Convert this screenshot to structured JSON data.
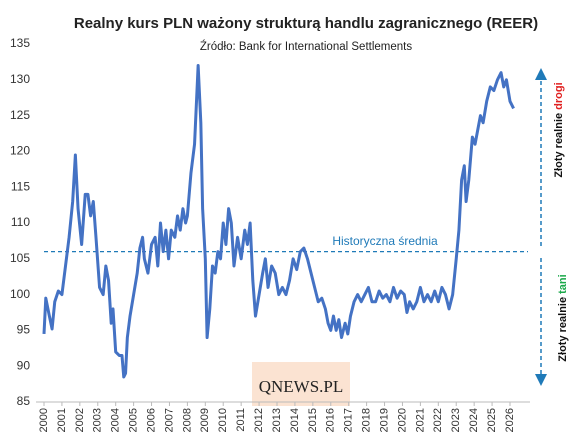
{
  "chart_data": {
    "type": "line",
    "title": "Realny kurs PLN ważony strukturą handlu zagranicznego (REER)",
    "subtitle": "Źródło: Bank for International Settlements",
    "color": "#4472c4",
    "x": [
      2000.0,
      2000.1,
      2000.3,
      2000.45,
      2000.6,
      2000.8,
      2001.0,
      2001.2,
      2001.4,
      2001.6,
      2001.75,
      2001.9,
      2002.1,
      2002.3,
      2002.45,
      2002.6,
      2002.75,
      2002.9,
      2003.1,
      2003.3,
      2003.45,
      2003.6,
      2003.75,
      2003.85,
      2004.0,
      2004.2,
      2004.35,
      2004.45,
      2004.55,
      2004.65,
      2004.8,
      2005.0,
      2005.2,
      2005.35,
      2005.5,
      2005.6,
      2005.8,
      2006.0,
      2006.2,
      2006.35,
      2006.5,
      2006.65,
      2006.8,
      2006.95,
      2007.1,
      2007.3,
      2007.45,
      2007.6,
      2007.75,
      2007.9,
      2008.0,
      2008.2,
      2008.4,
      2008.6,
      2008.75,
      2008.85,
      2009.0,
      2009.1,
      2009.25,
      2009.4,
      2009.55,
      2009.7,
      2009.85,
      2010.0,
      2010.15,
      2010.3,
      2010.45,
      2010.6,
      2010.8,
      2011.0,
      2011.2,
      2011.35,
      2011.5,
      2011.65,
      2011.8,
      2012.0,
      2012.2,
      2012.35,
      2012.5,
      2012.7,
      2012.9,
      2013.1,
      2013.3,
      2013.5,
      2013.7,
      2013.9,
      2014.1,
      2014.3,
      2014.5,
      2014.7,
      2014.9,
      2015.1,
      2015.3,
      2015.5,
      2015.7,
      2015.85,
      2016.0,
      2016.15,
      2016.3,
      2016.45,
      2016.6,
      2016.8,
      2016.95,
      2017.1,
      2017.3,
      2017.5,
      2017.7,
      2017.9,
      2018.1,
      2018.3,
      2018.5,
      2018.7,
      2018.9,
      2019.1,
      2019.3,
      2019.5,
      2019.7,
      2019.9,
      2020.1,
      2020.25,
      2020.4,
      2020.6,
      2020.8,
      2021.0,
      2021.2,
      2021.4,
      2021.6,
      2021.8,
      2022.0,
      2022.2,
      2022.4,
      2022.6,
      2022.8,
      2023.0,
      2023.15,
      2023.3,
      2023.45,
      2023.55,
      2023.7,
      2023.9,
      2024.05,
      2024.2,
      2024.35,
      2024.5,
      2024.7,
      2024.9,
      2025.1,
      2025.3,
      2025.5,
      2025.65,
      2025.8,
      2026.0,
      2026.2
    ],
    "values": [
      94.5,
      99.5,
      97,
      95.2,
      99,
      100.5,
      100,
      104,
      108,
      113,
      119.5,
      112,
      107,
      114,
      114,
      111,
      113,
      108,
      101,
      100,
      104,
      102,
      96,
      98,
      92,
      91.5,
      91.5,
      88.5,
      89,
      94,
      97,
      100,
      103,
      106.5,
      108,
      105,
      103,
      107,
      108,
      104,
      110,
      106,
      109,
      105,
      109,
      108,
      111,
      109,
      112,
      110,
      111,
      117,
      121,
      132,
      124,
      112,
      105,
      94,
      98,
      104,
      103,
      106,
      105,
      110,
      107,
      112,
      110,
      104,
      108,
      105,
      109,
      107,
      110,
      102,
      97,
      100,
      103,
      105,
      101,
      104,
      103,
      100,
      101,
      100,
      102,
      105,
      103.5,
      106,
      106.5,
      105,
      103,
      101,
      99,
      99.5,
      98,
      96,
      95,
      97,
      95,
      96.5,
      94,
      96,
      94.5,
      97,
      99,
      100,
      99,
      100,
      101,
      99,
      99,
      100.5,
      99.5,
      100,
      99,
      101,
      99.5,
      100.5,
      100,
      97.5,
      99,
      98,
      99,
      101,
      99,
      100,
      99,
      100.5,
      99,
      101,
      100,
      98,
      100,
      105,
      109,
      116,
      118,
      113,
      116,
      122,
      121,
      123,
      125,
      124,
      127,
      129,
      128.5,
      130,
      131,
      129,
      130,
      127,
      126
    ],
    "xlim": [
      2000,
      2026
    ],
    "xticks": [
      2000,
      2001,
      2002,
      2003,
      2004,
      2005,
      2006,
      2007,
      2008,
      2009,
      2010,
      2011,
      2012,
      2013,
      2014,
      2015,
      2016,
      2017,
      2018,
      2019,
      2020,
      2021,
      2022,
      2023,
      2024,
      2025,
      2026
    ],
    "ylim": [
      85,
      135
    ],
    "yticks": [
      85,
      90,
      95,
      100,
      105,
      110,
      115,
      120,
      125,
      130,
      135
    ],
    "average": {
      "value": 106,
      "label": "Historyczna średnia",
      "color": "#1f7ab8"
    },
    "expensive": {
      "text": "Złoty realnie",
      "highlight": "drogi",
      "color": "#e02020"
    },
    "cheap": {
      "text": "Złoty realnie",
      "highlight": "tani",
      "color": "#1aa84a"
    },
    "watermark": "QNEWS.PL"
  }
}
